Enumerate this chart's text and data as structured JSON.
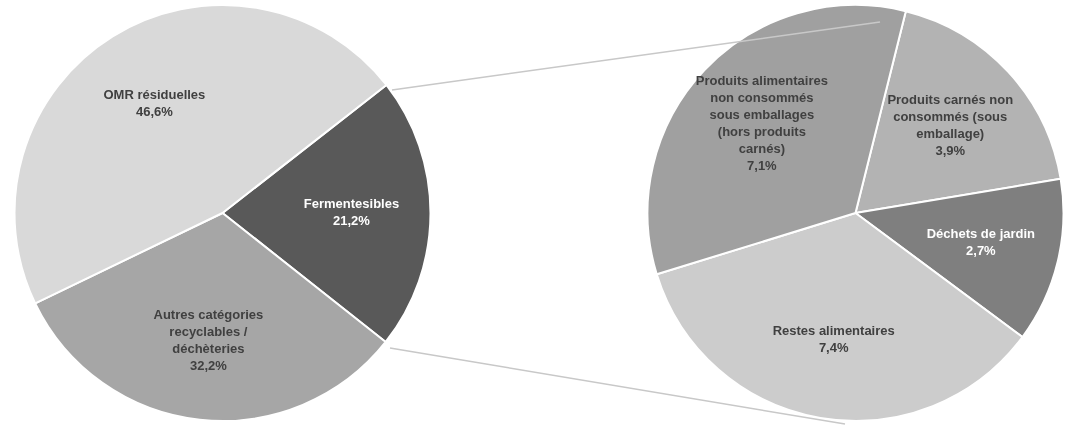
{
  "chart_data": [
    {
      "type": "pie",
      "categories": [
        "Fermentesibles",
        "Autres catégories recyclables / déchèteries",
        "OMR résiduelles"
      ],
      "values": [
        21.2,
        32.2,
        46.6
      ],
      "value_labels": [
        "21,2%",
        "32,2%",
        "46,6%"
      ],
      "colors": [
        "#595959",
        "#a6a6a6",
        "#d9d9d9"
      ]
    },
    {
      "type": "pie",
      "categories": [
        "Produits carnés non consommés (sous emballage)",
        "Déchets de jardin",
        "Restes alimentaires",
        "Produits alimentaires non consommés sous emballages (hors produits carnés)"
      ],
      "values": [
        3.9,
        2.7,
        7.4,
        7.1
      ],
      "value_labels": [
        "3,9%",
        "2,7%",
        "7,4%",
        "7,1%"
      ],
      "colors": [
        "#b3b3b3",
        "#7f7f7f",
        "#cccccc",
        "#a0a0a0"
      ]
    }
  ]
}
